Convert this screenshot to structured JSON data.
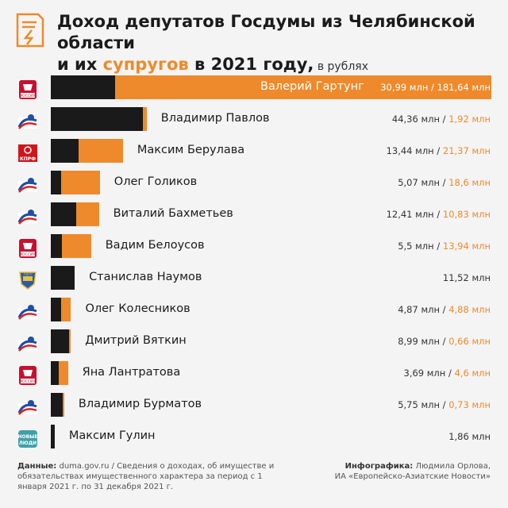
{
  "header": {
    "title_part1": "Доход депутатов Госдумы из Челябинской области",
    "title_part2": "и их ",
    "title_highlight": "супругов",
    "title_part3": " в 2021 году,",
    "title_unit": " в рублях"
  },
  "colors": {
    "deputy": "#1a1a1a",
    "spouse": "#ee8a2b",
    "background": "#f4f4f4"
  },
  "chart_data": {
    "type": "bar",
    "stacked": true,
    "orientation": "horizontal",
    "unit": "млн",
    "legend": "",
    "series": [
      {
        "name": "",
        "color": "#1a1a1a"
      },
      {
        "name": "",
        "color": "#ee8a2b"
      }
    ],
    "rows": [
      {
        "name": "Валерий Гартунг",
        "party_icon": "sr-icon",
        "deputy": 30.99,
        "spouse": 181.64,
        "deputy_label": "30,99 млн",
        "spouse_label": "181,64 млн"
      },
      {
        "name": "Владимир Павлов",
        "party_icon": "er-icon",
        "deputy": 44.36,
        "spouse": 1.92,
        "deputy_label": "44,36 млн",
        "spouse_label": "1,92 млн"
      },
      {
        "name": "Максим Берулава",
        "party_icon": "kprf-icon",
        "deputy": 13.44,
        "spouse": 21.37,
        "deputy_label": "13,44 млн",
        "spouse_label": "21,37 млн"
      },
      {
        "name": "Олег Голиков",
        "party_icon": "er-icon",
        "deputy": 5.07,
        "spouse": 18.6,
        "deputy_label": "5,07 млн",
        "spouse_label": "18,6 млн"
      },
      {
        "name": "Виталий Бахметьев",
        "party_icon": "er-icon",
        "deputy": 12.41,
        "spouse": 10.83,
        "deputy_label": "12,41 млн",
        "spouse_label": "10,83 млн"
      },
      {
        "name": "Вадим Белоусов",
        "party_icon": "sr-icon",
        "deputy": 5.5,
        "spouse": 13.94,
        "deputy_label": "5,5 млн",
        "spouse_label": "13,94 млн"
      },
      {
        "name": "Станислав Наумов",
        "party_icon": "ldpr-icon",
        "deputy": 11.52,
        "spouse": 0,
        "deputy_label": "11,52 млн",
        "spouse_label": ""
      },
      {
        "name": "Олег Колесников",
        "party_icon": "er-icon",
        "deputy": 4.87,
        "spouse": 4.88,
        "deputy_label": "4,87 млн",
        "spouse_label": "4,88 млн"
      },
      {
        "name": "Дмитрий Вяткин",
        "party_icon": "er-icon",
        "deputy": 8.99,
        "spouse": 0.66,
        "deputy_label": "8,99 млн",
        "spouse_label": "0,66 млн"
      },
      {
        "name": "Яна Лантратова",
        "party_icon": "sr-icon",
        "deputy": 3.69,
        "spouse": 4.6,
        "deputy_label": "3,69 млн",
        "spouse_label": "4,6 млн"
      },
      {
        "name": "Владимир Бурматов",
        "party_icon": "er-icon",
        "deputy": 5.75,
        "spouse": 0.73,
        "deputy_label": "5,75 млн",
        "spouse_label": "0,73 млн"
      },
      {
        "name": "Максим Гулин",
        "party_icon": "nl-icon",
        "deputy": 1.86,
        "spouse": 0,
        "deputy_label": "1,86 млн",
        "spouse_label": ""
      }
    ],
    "xlim": [
      0,
      212.63
    ]
  },
  "footer": {
    "source_label": "Данные:",
    "source_text": " duma.gov.ru / Сведения о доходах, об имуществе и обязательствах имущественного характера за период с 1 января 2021 г. по 31 декабря 2021 г.",
    "credit_label": "Инфографика:",
    "credit_text": " Людмила Орлова,",
    "credit_org": "ИА «Европейско-Азиатские Новости»"
  },
  "icon_text": {
    "kprf": "КПРФ",
    "sr": "РОССИЯ",
    "nl_top": "НОВЫЕ",
    "nl_bottom": "ЛЮДИ",
    "ldpr": "ЛДПР"
  }
}
